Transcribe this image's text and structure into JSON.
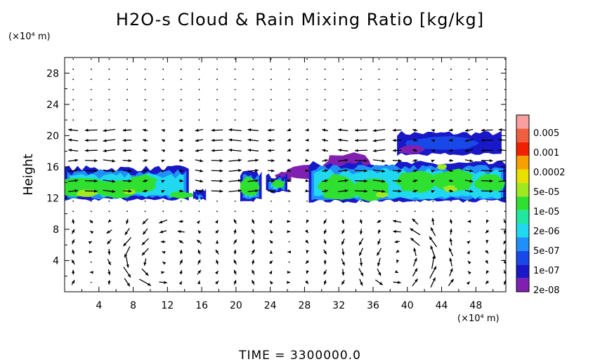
{
  "chart_data": {
    "type": "heatmap",
    "title": "H2O-s Cloud & Rain Mixing Ratio [kg/kg]",
    "ylabel": "Height",
    "xlabel": "",
    "y_unit": "(×10⁴ m)",
    "x_unit": "(×10⁴ m)",
    "time_label": "TIME = 3300000.0",
    "xlim": [
      0,
      51.5
    ],
    "ylim": [
      0,
      30
    ],
    "x_ticks": [
      4,
      8,
      12,
      16,
      20,
      24,
      28,
      32,
      36,
      40,
      44,
      48
    ],
    "y_ticks": [
      4,
      8,
      12,
      16,
      20,
      24,
      28
    ],
    "colorbar": {
      "labels": [
        "0.005",
        "0.001",
        "0.0002",
        "5e-05",
        "1e-05",
        "2e-06",
        "5e-07",
        "1e-07",
        "2e-08"
      ],
      "colors": [
        "#f8a0a0",
        "#f06040",
        "#f02000",
        "#f8a000",
        "#e8e000",
        "#a0e820",
        "#30e030",
        "#20e8a0",
        "#20d8f0",
        "#2090f8",
        "#1848e8",
        "#1818c8",
        "#8020b0"
      ]
    },
    "cloud_regions": [
      {
        "name": "main-cloud-layer",
        "x_range": [
          0,
          51.5
        ],
        "y_range": [
          11.5,
          16.5
        ],
        "levels": [
          "2e-08",
          "1e-07",
          "5e-07",
          "2e-06",
          "1e-05",
          "5e-05"
        ]
      },
      {
        "name": "upper-cloud",
        "x_range": [
          38.5,
          51
        ],
        "y_range": [
          17.5,
          20.5
        ],
        "levels": [
          "2e-08",
          "1e-07"
        ]
      },
      {
        "name": "purple-patch",
        "x_range": [
          26,
          37
        ],
        "y_range": [
          14,
          18
        ],
        "levels": [
          "2e-08"
        ]
      }
    ],
    "wind_vectors": "arrows indicating circulation: eastward/westward flow near 12–20, convective eddies below 8"
  }
}
